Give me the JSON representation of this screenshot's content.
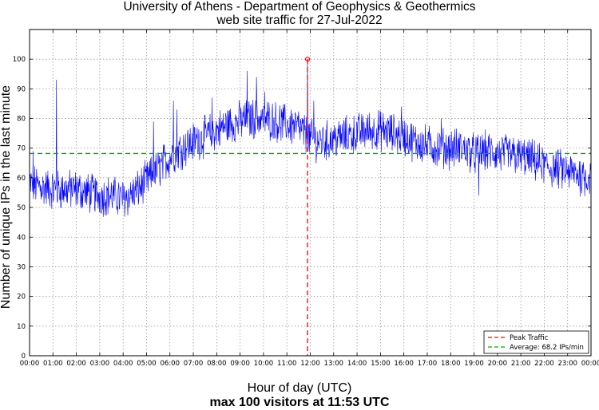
{
  "chart_data": {
    "type": "line",
    "title": "University of Athens - Department of Geophysics & Geothermics",
    "subtitle_line": "web site traffic for 27-Jul-2022",
    "xlabel": "Hour of day (UTC)",
    "ylabel": "Number of unique IPs in the last minute",
    "footer": "max 100 visitors at 11:53 UTC",
    "x_tick_labels": [
      "00:00",
      "01:00",
      "02:00",
      "03:00",
      "04:00",
      "05:00",
      "06:00",
      "07:00",
      "08:00",
      "09:00",
      "10:00",
      "11:00",
      "12:00",
      "13:00",
      "14:00",
      "15:00",
      "16:00",
      "17:00",
      "18:00",
      "19:00",
      "20:00",
      "21:00",
      "22:00",
      "23:00",
      "00:00"
    ],
    "y_tick_labels": [
      "0",
      "10",
      "20",
      "30",
      "40",
      "50",
      "60",
      "70",
      "80",
      "90",
      "100"
    ],
    "xlim_hours": [
      0,
      24
    ],
    "ylim": [
      0,
      110
    ],
    "grid": true,
    "series_color": "#0000ff",
    "trend_hours": [
      0,
      0.5,
      1,
      1.5,
      2,
      2.5,
      3,
      3.5,
      4,
      4.5,
      5,
      5.5,
      6,
      6.5,
      7,
      7.5,
      8,
      8.5,
      9,
      9.5,
      10,
      10.5,
      11,
      11.5,
      12,
      12.5,
      13,
      13.5,
      14,
      14.5,
      15,
      15.5,
      16,
      16.5,
      17,
      17.5,
      18,
      18.5,
      19,
      19.5,
      20,
      20.5,
      21,
      21.5,
      22,
      22.5,
      23,
      23.5,
      24
    ],
    "trend_values": [
      58,
      57,
      56,
      56,
      56,
      55,
      54,
      54,
      53,
      55,
      59,
      63,
      67,
      70,
      72,
      74,
      76,
      78,
      79,
      80,
      80,
      79,
      78,
      77,
      73,
      72,
      73,
      74,
      75,
      76,
      76,
      75,
      74,
      72,
      71,
      70,
      70,
      70,
      68,
      69,
      68,
      68,
      67,
      66,
      64,
      63,
      62,
      61,
      60
    ],
    "noise_amplitude": 6,
    "spikes": [
      {
        "hour": 1.15,
        "value": 93
      },
      {
        "hour": 0.15,
        "value": 69
      },
      {
        "hour": 5.3,
        "value": 79
      },
      {
        "hour": 6.15,
        "value": 86
      },
      {
        "hour": 6.3,
        "value": 83
      },
      {
        "hour": 7.8,
        "value": 87
      },
      {
        "hour": 9.3,
        "value": 96
      },
      {
        "hour": 9.7,
        "value": 94
      },
      {
        "hour": 10.05,
        "value": 89
      },
      {
        "hour": 12.15,
        "value": 86
      },
      {
        "hour": 15.9,
        "value": 84
      },
      {
        "hour": 19.2,
        "value": 54
      },
      {
        "hour": 17.6,
        "value": 80
      }
    ],
    "peak": {
      "label": "Peak Traffic",
      "hour": 11.883,
      "value": 100,
      "color": "#ff0000"
    },
    "average": {
      "label": "Average: 68.2 IPs/min",
      "value": 68.2,
      "color": "#00aa00"
    },
    "legend_position": "bottom-right"
  }
}
